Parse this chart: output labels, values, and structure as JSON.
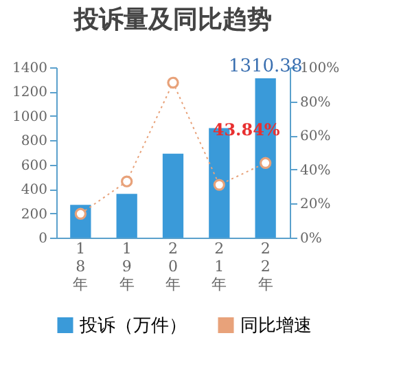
{
  "chart_data": {
    "type": "bar",
    "title": "投诉量及同比趋势",
    "categories": [
      "18年",
      "19年",
      "20年",
      "21年",
      "22年"
    ],
    "series": [
      {
        "name": "投诉（万件）",
        "color": "#3a9ad9",
        "values": [
          270,
          360,
          690,
          900,
          1310.38
        ],
        "value_labels": [
          null,
          null,
          null,
          null,
          "1310.38"
        ]
      },
      {
        "name": "同比增速",
        "type": "line",
        "axis": "y2",
        "color": "#e8a27a",
        "values": [
          14,
          33,
          91,
          31,
          43.84
        ],
        "value_labels": [
          null,
          null,
          null,
          null,
          "43.84%"
        ],
        "marker": "circle",
        "line_style": "dotted"
      }
    ],
    "ylim": [
      0,
      1400
    ],
    "yticks": [
      0,
      200,
      400,
      600,
      800,
      1000,
      1200,
      1400
    ],
    "y2lim": [
      0,
      100
    ],
    "y2ticks": [
      {
        "value": 0,
        "label": "0%"
      },
      {
        "value": 20,
        "label": "20%"
      },
      {
        "value": 40,
        "label": "40%"
      },
      {
        "value": 60,
        "label": "60%"
      },
      {
        "value": 80,
        "label": "80%"
      },
      {
        "value": 100,
        "label": "100%"
      }
    ],
    "legend": "bottom"
  }
}
